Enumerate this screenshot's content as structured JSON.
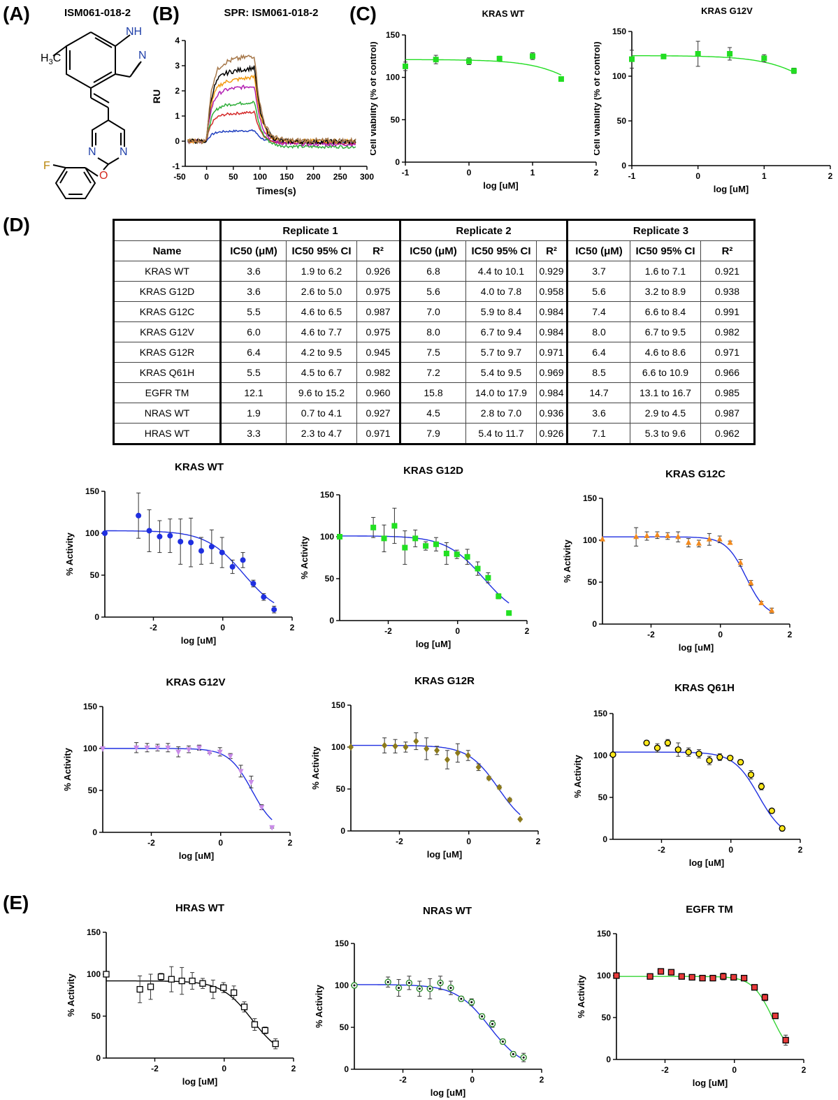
{
  "panels": {
    "A": "(A)",
    "B": "(B)",
    "C": "(C)",
    "D": "(D)",
    "E": "(E)"
  },
  "molecule": {
    "title": "ISM061-018-2",
    "atoms": {
      "nh": "NH",
      "n_pyrazole": "N",
      "methyl": "H",
      "methyl_sub": "3",
      "methyl_c": "C",
      "n1": "N",
      "n2": "N",
      "o": "O",
      "f": "F"
    },
    "colors": {
      "nitrogen": "#1f3fa8",
      "oxygen": "#d42a1f",
      "fluorine": "#b8860b",
      "bond": "#000000"
    }
  },
  "chart_data": [
    {
      "id": "spr",
      "type": "line",
      "title": "SPR: ISM061-018-2",
      "xlabel": "Times(s)",
      "ylabel": "RU",
      "xlim": [
        -40,
        300
      ],
      "ylim": [
        -1,
        4
      ],
      "xticks": [
        -50,
        0,
        50,
        100,
        150,
        200,
        250,
        300
      ],
      "yticks": [
        -1,
        0,
        1,
        2,
        3,
        4
      ],
      "series": [
        {
          "color": "#1f3fbf",
          "plateau": 0.42,
          "baseline": -0.05
        },
        {
          "color": "#d42a2a",
          "plateau": 1.15,
          "baseline": -0.08
        },
        {
          "color": "#2fae3a",
          "plateau": 1.55,
          "baseline": -0.22
        },
        {
          "color": "#b21fb2",
          "plateau": 2.2,
          "baseline": -0.12
        },
        {
          "color": "#f29a12",
          "plateau": 2.55,
          "baseline": 0.0
        },
        {
          "color": "#000000",
          "plateau": 2.92,
          "baseline": -0.02
        },
        {
          "color": "#a6784a",
          "plateau": 3.4,
          "baseline": 0.02
        }
      ],
      "injection": [
        0,
        90
      ]
    },
    {
      "id": "via_wt",
      "type": "scatter",
      "title": "KRAS WT",
      "xlabel": "log [uM]",
      "ylabel": "Cell viability (% of control)",
      "xlim": [
        -1,
        2
      ],
      "ylim": [
        0,
        150
      ],
      "xticks": [
        -1,
        0,
        1,
        2
      ],
      "yticks": [
        0,
        50,
        100,
        150
      ],
      "color": "#22dd22",
      "marker": "square",
      "fit_color": "#22dd22",
      "x": [
        -1,
        -0.52,
        0,
        0.48,
        1,
        1.45
      ],
      "y": [
        113,
        121,
        119,
        122,
        125,
        98
      ],
      "err": [
        5,
        5,
        4,
        3,
        4,
        1
      ],
      "fit": {
        "top": 121,
        "bottom": 0,
        "logic50": 2.2,
        "hill": 1.0
      }
    },
    {
      "id": "via_g12v",
      "type": "scatter",
      "title": "KRAS G12V",
      "xlabel": "log [uM]",
      "ylabel": "Cell viability (% of control)",
      "xlim": [
        -1,
        2
      ],
      "ylim": [
        0,
        150
      ],
      "xticks": [
        -1,
        0,
        1,
        2
      ],
      "yticks": [
        0,
        50,
        100,
        150
      ],
      "color": "#22dd22",
      "marker": "square",
      "fit_color": "#22dd22",
      "x": [
        -1,
        -0.52,
        0,
        0.48,
        1,
        1.45
      ],
      "y": [
        119,
        122,
        125,
        125,
        120,
        106
      ],
      "err": [
        10,
        1,
        14,
        7,
        4,
        3
      ],
      "fit": {
        "top": 123,
        "bottom": 0,
        "logic50": 2.2,
        "hill": 1.0
      }
    },
    {
      "id": "act_wt",
      "type": "scatter",
      "title": "KRAS WT",
      "xlabel": "log [uM]",
      "ylabel": "% Activity",
      "xlim": [
        -3.4,
        2
      ],
      "ylim": [
        0,
        150
      ],
      "xticks": [
        -2,
        0,
        2
      ],
      "yticks": [
        0,
        50,
        100,
        150
      ],
      "color": "#1f2fe0",
      "marker": "circle",
      "fit_color": "#1f2fe0",
      "x": [
        -3.4,
        -2.43,
        -2.12,
        -1.82,
        -1.52,
        -1.22,
        -0.92,
        -0.62,
        -0.32,
        -0.02,
        0.28,
        0.58,
        0.88,
        1.18,
        1.48
      ],
      "y": [
        100,
        121,
        103,
        96,
        97,
        90,
        89,
        79,
        84,
        77,
        60,
        68,
        40,
        24,
        9
      ],
      "err": [
        0,
        27,
        25,
        19,
        20,
        27,
        29,
        16,
        20,
        18,
        8,
        9,
        4,
        4,
        4
      ],
      "fit": {
        "top": 103,
        "bottom": 0,
        "logic50": 0.6,
        "hill": 0.8
      }
    },
    {
      "id": "act_g12d",
      "type": "scatter",
      "title": "KRAS G12D",
      "xlabel": "log [uM]",
      "ylabel": "% Activity",
      "xlim": [
        -3.4,
        2
      ],
      "ylim": [
        0,
        150
      ],
      "xticks": [
        -2,
        0,
        2
      ],
      "yticks": [
        0,
        50,
        100,
        150
      ],
      "color": "#22e022",
      "marker": "square",
      "fit_color": "#1f2fe0",
      "x": [
        -3.4,
        -2.43,
        -2.12,
        -1.82,
        -1.52,
        -1.22,
        -0.92,
        -0.62,
        -0.32,
        -0.02,
        0.28,
        0.58,
        0.88,
        1.18,
        1.48
      ],
      "y": [
        100,
        111,
        98,
        113,
        87,
        98,
        89,
        91,
        80,
        79,
        76,
        62,
        51,
        29,
        9
      ],
      "err": [
        0,
        12,
        16,
        21,
        20,
        10,
        5,
        8,
        13,
        5,
        9,
        8,
        6,
        3,
        0
      ],
      "fit": {
        "top": 101,
        "bottom": 0,
        "logic50": 0.75,
        "hill": 0.8
      }
    },
    {
      "id": "act_g12c",
      "type": "scatter",
      "title": "KRAS G12C",
      "xlabel": "log [uM]",
      "ylabel": "% Activity",
      "xlim": [
        -3.4,
        2
      ],
      "ylim": [
        0,
        150
      ],
      "xticks": [
        -2,
        0,
        2
      ],
      "yticks": [
        0,
        50,
        100,
        150
      ],
      "color": "#f28a1e",
      "marker": "triangle",
      "fit_color": "#1f2fe0",
      "x": [
        -3.4,
        -2.43,
        -2.12,
        -1.82,
        -1.52,
        -1.22,
        -0.92,
        -0.62,
        -0.32,
        -0.02,
        0.28,
        0.58,
        0.88,
        1.18,
        1.48
      ],
      "y": [
        101,
        104,
        105,
        106,
        105,
        104,
        97,
        96,
        101,
        101,
        97,
        73,
        49,
        25,
        16
      ],
      "err": [
        0,
        11,
        5,
        4,
        4,
        6,
        5,
        4,
        7,
        4,
        2,
        4,
        3,
        2,
        3
      ],
      "fit": {
        "top": 104,
        "bottom": 8,
        "logic50": 0.74,
        "hill": 1.5
      }
    },
    {
      "id": "act_g12v",
      "type": "scatter",
      "title": "KRAS G12V",
      "xlabel": "log [uM]",
      "ylabel": "% Activity",
      "xlim": [
        -3.4,
        2
      ],
      "ylim": [
        0,
        150
      ],
      "xticks": [
        -2,
        0,
        2
      ],
      "yticks": [
        0,
        50,
        100,
        150
      ],
      "color": "#c98ce8",
      "marker": "triangle-down",
      "fit_color": "#1f2fe0",
      "x": [
        -3.4,
        -2.43,
        -2.12,
        -1.82,
        -1.52,
        -1.22,
        -0.92,
        -0.62,
        -0.32,
        -0.02,
        0.28,
        0.58,
        0.88,
        1.18,
        1.48
      ],
      "y": [
        100,
        101,
        101,
        101,
        101,
        96,
        99,
        101,
        95,
        96,
        91,
        73,
        60,
        30,
        6
      ],
      "err": [
        0,
        6,
        5,
        4,
        5,
        6,
        4,
        3,
        1,
        5,
        3,
        7,
        7,
        3,
        1
      ],
      "fit": {
        "top": 100,
        "bottom": 0,
        "logic50": 0.9,
        "hill": 1.3
      }
    },
    {
      "id": "act_g12r",
      "type": "scatter",
      "title": "KRAS G12R",
      "xlabel": "log [uM]",
      "ylabel": "% Activity",
      "xlim": [
        -3.4,
        2
      ],
      "ylim": [
        0,
        150
      ],
      "xticks": [
        -2,
        0,
        2
      ],
      "yticks": [
        0,
        50,
        100,
        150
      ],
      "color": "#8c7a1c",
      "marker": "diamond",
      "fit_color": "#1f2fe0",
      "x": [
        -3.4,
        -2.43,
        -2.12,
        -1.82,
        -1.52,
        -1.22,
        -0.92,
        -0.62,
        -0.32,
        -0.02,
        0.28,
        0.58,
        0.88,
        1.18,
        1.48
      ],
      "y": [
        100,
        102,
        101,
        100,
        107,
        98,
        96,
        85,
        93,
        90,
        76,
        63,
        52,
        37,
        14
      ],
      "err": [
        0,
        9,
        8,
        6,
        10,
        13,
        5,
        11,
        11,
        6,
        4,
        2,
        2,
        2,
        1
      ],
      "fit": {
        "top": 102,
        "bottom": 0,
        "logic50": 0.85,
        "hill": 1.0
      }
    },
    {
      "id": "act_q61h",
      "type": "scatter",
      "title": "KRAS Q61H",
      "xlabel": "log [uM]",
      "ylabel": "% Activity",
      "xlim": [
        -3.4,
        2
      ],
      "ylim": [
        0,
        150
      ],
      "xticks": [
        -2,
        0,
        2
      ],
      "yticks": [
        0,
        50,
        100,
        150
      ],
      "color": "#ffe81a",
      "marker": "circle-open",
      "fit_color": "#1f2fe0",
      "x": [
        -3.4,
        -2.43,
        -2.12,
        -1.82,
        -1.52,
        -1.22,
        -0.92,
        -0.62,
        -0.32,
        -0.02,
        0.28,
        0.58,
        0.88,
        1.18,
        1.48
      ],
      "y": [
        101,
        115,
        109,
        115,
        107,
        104,
        102,
        94,
        98,
        97,
        92,
        77,
        63,
        34,
        13
      ],
      "err": [
        0,
        3,
        5,
        4,
        8,
        5,
        5,
        5,
        4,
        2,
        3,
        5,
        4,
        2,
        3
      ],
      "fit": {
        "top": 104,
        "bottom": 0,
        "logic50": 0.8,
        "hill": 1.2
      }
    },
    {
      "id": "act_hras",
      "type": "scatter",
      "title": "HRAS WT",
      "xlabel": "log [uM]",
      "ylabel": "% Activity",
      "xlim": [
        -3.4,
        2
      ],
      "ylim": [
        0,
        150
      ],
      "xticks": [
        -2,
        0,
        2
      ],
      "yticks": [
        0,
        50,
        100,
        150
      ],
      "color": "#ffffff",
      "marker": "square-open",
      "fit_color": "#000000",
      "x": [
        -3.4,
        -2.43,
        -2.12,
        -1.82,
        -1.52,
        -1.22,
        -0.92,
        -0.62,
        -0.32,
        -0.02,
        0.28,
        0.58,
        0.88,
        1.18,
        1.48
      ],
      "y": [
        100,
        82,
        85,
        97,
        94,
        92,
        92,
        89,
        82,
        84,
        78,
        61,
        40,
        33,
        17
      ],
      "err": [
        1,
        16,
        15,
        4,
        15,
        16,
        10,
        6,
        11,
        6,
        8,
        6,
        7,
        4,
        6
      ],
      "fit": {
        "top": 92,
        "bottom": 0,
        "logic50": 0.8,
        "hill": 1.0
      }
    },
    {
      "id": "act_nras",
      "type": "scatter",
      "title": "NRAS WT",
      "xlabel": "log [uM]",
      "ylabel": "% Activity",
      "xlim": [
        -3.4,
        2
      ],
      "ylim": [
        0,
        150
      ],
      "xticks": [
        -2,
        0,
        2
      ],
      "yticks": [
        0,
        50,
        100,
        150
      ],
      "color": "#2e8b2e",
      "marker": "circle-dot",
      "fit_color": "#1f2fe0",
      "x": [
        -3.4,
        -2.43,
        -2.12,
        -1.82,
        -1.52,
        -1.22,
        -0.92,
        -0.62,
        -0.32,
        -0.02,
        0.28,
        0.58,
        0.88,
        1.18,
        1.48
      ],
      "y": [
        100,
        104,
        97,
        103,
        96,
        96,
        103,
        97,
        84,
        80,
        63,
        54,
        33,
        18,
        14
      ],
      "err": [
        0,
        6,
        10,
        8,
        9,
        12,
        8,
        8,
        3,
        4,
        3,
        4,
        3,
        3,
        5
      ],
      "fit": {
        "top": 101,
        "bottom": 0,
        "logic50": 0.5,
        "hill": 0.9
      }
    },
    {
      "id": "act_egfr",
      "type": "scatter",
      "title": "EGFR TM",
      "xlabel": "log [uM]",
      "ylabel": "% Activity",
      "xlim": [
        -3.4,
        2
      ],
      "ylim": [
        0,
        150
      ],
      "xticks": [
        -2,
        0,
        2
      ],
      "yticks": [
        0,
        50,
        100,
        150
      ],
      "color": "#e83a3a",
      "marker": "square-filled",
      "fit_color": "#36d436",
      "x": [
        -3.4,
        -2.43,
        -2.12,
        -1.82,
        -1.52,
        -1.22,
        -0.92,
        -0.62,
        -0.32,
        -0.02,
        0.28,
        0.58,
        0.88,
        1.18,
        1.48
      ],
      "y": [
        100,
        99,
        105,
        104,
        99,
        98,
        97,
        97,
        99,
        98,
        97,
        86,
        74,
        52,
        23
      ],
      "err": [
        0,
        3,
        2,
        2,
        2,
        1,
        2,
        1,
        4,
        3,
        2,
        2,
        4,
        2,
        6
      ],
      "fit": {
        "top": 99,
        "bottom": 0,
        "logic50": 1.1,
        "hill": 1.5
      }
    }
  ],
  "table": {
    "group_headers": [
      "Replicate 1",
      "Replicate 2",
      "Replicate 3"
    ],
    "name_header": "Name",
    "sub_headers": [
      "IC50 (μM)",
      "IC50 95% CI",
      "R²"
    ],
    "rows": [
      [
        "KRAS WT",
        "3.6",
        "1.9 to 6.2",
        "0.926",
        "6.8",
        "4.4 to 10.1",
        "0.929",
        "3.7",
        "1.6 to 7.1",
        "0.921"
      ],
      [
        "KRAS G12D",
        "3.6",
        "2.6 to 5.0",
        "0.975",
        "5.6",
        "4.0 to 7.8",
        "0.958",
        "5.6",
        "3.2 to 8.9",
        "0.938"
      ],
      [
        "KRAS G12C",
        "5.5",
        "4.6 to 6.5",
        "0.987",
        "7.0",
        "5.9 to 8.4",
        "0.984",
        "7.4",
        "6.6 to 8.4",
        "0.991"
      ],
      [
        "KRAS G12V",
        "6.0",
        "4.6 to 7.7",
        "0.975",
        "8.0",
        "6.7 to 9.4",
        "0.984",
        "8.0",
        "6.7 to 9.5",
        "0.982"
      ],
      [
        "KRAS G12R",
        "6.4",
        "4.2 to 9.5",
        "0.945",
        "7.5",
        "5.7 to 9.7",
        "0.971",
        "6.4",
        "4.6 to 8.6",
        "0.971"
      ],
      [
        "KRAS Q61H",
        "5.5",
        "4.5 to 6.7",
        "0.982",
        "7.2",
        "5.4 to 9.5",
        "0.969",
        "8.5",
        "6.6 to 10.9",
        "0.966"
      ],
      [
        "EGFR TM",
        "12.1",
        "9.6 to 15.2",
        "0.960",
        "15.8",
        "14.0 to 17.9",
        "0.984",
        "14.7",
        "13.1 to 16.7",
        "0.985"
      ],
      [
        "NRAS WT",
        "1.9",
        "0.7 to 4.1",
        "0.927",
        "4.5",
        "2.8 to 7.0",
        "0.936",
        "3.6",
        "2.9 to 4.5",
        "0.987"
      ],
      [
        "HRAS WT",
        "3.3",
        "2.3 to 4.7",
        "0.971",
        "7.9",
        "5.4 to 11.7",
        "0.926",
        "7.1",
        "5.3 to 9.6",
        "0.962"
      ]
    ]
  }
}
